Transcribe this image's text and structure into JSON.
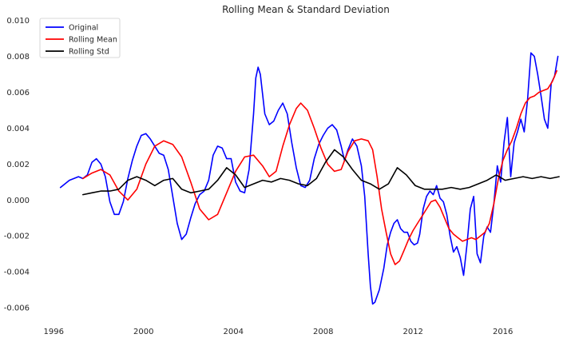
{
  "chart_data": {
    "type": "line",
    "title": "Rolling Mean & Standard Deviation",
    "xlabel": "",
    "ylabel": "",
    "xlim": [
      1995.6,
      2018.5
    ],
    "ylim": [
      -0.0068,
      0.0103
    ],
    "x_ticks": [
      1996,
      2000,
      2004,
      2008,
      2012,
      2016
    ],
    "y_ticks": [
      -0.006,
      -0.004,
      -0.002,
      0.0,
      0.002,
      0.004,
      0.006,
      0.008,
      0.01
    ],
    "x_tick_labels": [
      "1996",
      "2000",
      "2004",
      "2008",
      "2012",
      "2016"
    ],
    "y_tick_labels": [
      "-0.006",
      "-0.004",
      "-0.002",
      "0.000",
      "0.002",
      "0.004",
      "0.006",
      "0.008",
      "0.010"
    ],
    "grid": false,
    "legend_position": "top-left",
    "series": [
      {
        "name": "Original",
        "color": "#0000ff",
        "points": [
          [
            1996.3,
            0.0007
          ],
          [
            1996.5,
            0.0009
          ],
          [
            1996.7,
            0.0011
          ],
          [
            1996.9,
            0.0012
          ],
          [
            1997.1,
            0.0013
          ],
          [
            1997.3,
            0.0012
          ],
          [
            1997.5,
            0.0014
          ],
          [
            1997.7,
            0.0021
          ],
          [
            1997.9,
            0.0023
          ],
          [
            1998.1,
            0.002
          ],
          [
            1998.3,
            0.0013
          ],
          [
            1998.5,
            -0.0001
          ],
          [
            1998.7,
            -0.0008
          ],
          [
            1998.9,
            -0.0008
          ],
          [
            1999.1,
            -0.0001
          ],
          [
            1999.3,
            0.0012
          ],
          [
            1999.5,
            0.0022
          ],
          [
            1999.7,
            0.003
          ],
          [
            1999.9,
            0.0036
          ],
          [
            2000.1,
            0.0037
          ],
          [
            2000.3,
            0.0034
          ],
          [
            2000.5,
            0.003
          ],
          [
            2000.7,
            0.0026
          ],
          [
            2000.9,
            0.0025
          ],
          [
            2001.1,
            0.0017
          ],
          [
            2001.3,
            0.0002
          ],
          [
            2001.5,
            -0.0013
          ],
          [
            2001.7,
            -0.0022
          ],
          [
            2001.9,
            -0.0019
          ],
          [
            2002.1,
            -0.001
          ],
          [
            2002.3,
            -0.0002
          ],
          [
            2002.5,
            0.0003
          ],
          [
            2002.7,
            0.0005
          ],
          [
            2002.9,
            0.0011
          ],
          [
            2003.1,
            0.0025
          ],
          [
            2003.3,
            0.003
          ],
          [
            2003.5,
            0.0029
          ],
          [
            2003.7,
            0.0023
          ],
          [
            2003.9,
            0.0023
          ],
          [
            2004.1,
            0.001
          ],
          [
            2004.3,
            0.0005
          ],
          [
            2004.5,
            0.0004
          ],
          [
            2004.7,
            0.0017
          ],
          [
            2004.9,
            0.0048
          ],
          [
            2005.0,
            0.0068
          ],
          [
            2005.1,
            0.0074
          ],
          [
            2005.2,
            0.007
          ],
          [
            2005.4,
            0.0048
          ],
          [
            2005.6,
            0.0042
          ],
          [
            2005.8,
            0.0044
          ],
          [
            2006.0,
            0.005
          ],
          [
            2006.2,
            0.0054
          ],
          [
            2006.4,
            0.0048
          ],
          [
            2006.6,
            0.0032
          ],
          [
            2006.8,
            0.0018
          ],
          [
            2007.0,
            0.0008
          ],
          [
            2007.2,
            0.0007
          ],
          [
            2007.4,
            0.0011
          ],
          [
            2007.6,
            0.0023
          ],
          [
            2007.8,
            0.0031
          ],
          [
            2008.0,
            0.0036
          ],
          [
            2008.2,
            0.004
          ],
          [
            2008.4,
            0.0042
          ],
          [
            2008.6,
            0.0039
          ],
          [
            2008.8,
            0.003
          ],
          [
            2008.95,
            0.0022
          ],
          [
            2009.1,
            0.0028
          ],
          [
            2009.3,
            0.0034
          ],
          [
            2009.5,
            0.003
          ],
          [
            2009.7,
            0.0019
          ],
          [
            2009.85,
            0.0002
          ],
          [
            2010.0,
            -0.003
          ],
          [
            2010.1,
            -0.0048
          ],
          [
            2010.2,
            -0.0058
          ],
          [
            2010.3,
            -0.0057
          ],
          [
            2010.5,
            -0.005
          ],
          [
            2010.7,
            -0.0038
          ],
          [
            2010.85,
            -0.0025
          ],
          [
            2011.0,
            -0.0018
          ],
          [
            2011.15,
            -0.0013
          ],
          [
            2011.3,
            -0.0011
          ],
          [
            2011.45,
            -0.0016
          ],
          [
            2011.6,
            -0.0018
          ],
          [
            2011.75,
            -0.0018
          ],
          [
            2011.9,
            -0.0023
          ],
          [
            2012.05,
            -0.0025
          ],
          [
            2012.2,
            -0.0024
          ],
          [
            2012.3,
            -0.0019
          ],
          [
            2012.45,
            -0.0005
          ],
          [
            2012.6,
            0.0002
          ],
          [
            2012.75,
            0.0005
          ],
          [
            2012.9,
            0.0003
          ],
          [
            2013.05,
            0.0008
          ],
          [
            2013.2,
            0.0001
          ],
          [
            2013.35,
            -0.0001
          ],
          [
            2013.5,
            -0.0008
          ],
          [
            2013.65,
            -0.002
          ],
          [
            2013.8,
            -0.0029
          ],
          [
            2013.95,
            -0.0026
          ],
          [
            2014.1,
            -0.0032
          ],
          [
            2014.25,
            -0.0042
          ],
          [
            2014.4,
            -0.0025
          ],
          [
            2014.55,
            -0.0005
          ],
          [
            2014.7,
            0.0002
          ],
          [
            2014.85,
            -0.003
          ],
          [
            2015.0,
            -0.0035
          ],
          [
            2015.15,
            -0.002
          ],
          [
            2015.3,
            -0.0015
          ],
          [
            2015.45,
            -0.0018
          ],
          [
            2015.6,
            -0.0002
          ],
          [
            2015.75,
            0.0019
          ],
          [
            2015.9,
            0.001
          ],
          [
            2016.05,
            0.0032
          ],
          [
            2016.2,
            0.0046
          ],
          [
            2016.35,
            0.0013
          ],
          [
            2016.5,
            0.0032
          ],
          [
            2016.65,
            0.0038
          ],
          [
            2016.8,
            0.0045
          ],
          [
            2016.95,
            0.0038
          ],
          [
            2017.1,
            0.0056
          ],
          [
            2017.25,
            0.0082
          ],
          [
            2017.4,
            0.008
          ],
          [
            2017.55,
            0.007
          ],
          [
            2017.7,
            0.0058
          ],
          [
            2017.85,
            0.0045
          ],
          [
            2018.0,
            0.004
          ],
          [
            2018.15,
            0.0065
          ],
          [
            2018.3,
            0.0069
          ],
          [
            2018.45,
            0.008
          ],
          [
            2018.6,
            0.0075
          ],
          [
            2018.75,
            0.008
          ],
          [
            2018.9,
            0.0088
          ],
          [
            2019.0,
            0.0093
          ]
        ]
      },
      {
        "name": "Rolling Mean",
        "color": "#ff0000",
        "points": [
          [
            1997.3,
            0.0012
          ],
          [
            1997.7,
            0.0015
          ],
          [
            1998.1,
            0.0017
          ],
          [
            1998.5,
            0.0014
          ],
          [
            1998.9,
            0.0005
          ],
          [
            1999.3,
            0.0
          ],
          [
            1999.7,
            0.0006
          ],
          [
            2000.1,
            0.002
          ],
          [
            2000.5,
            0.003
          ],
          [
            2000.9,
            0.0033
          ],
          [
            2001.3,
            0.0031
          ],
          [
            2001.7,
            0.0024
          ],
          [
            2002.1,
            0.001
          ],
          [
            2002.5,
            -0.0005
          ],
          [
            2002.9,
            -0.0011
          ],
          [
            2003.3,
            -0.0008
          ],
          [
            2003.7,
            0.0004
          ],
          [
            2004.1,
            0.0016
          ],
          [
            2004.5,
            0.0024
          ],
          [
            2004.9,
            0.0025
          ],
          [
            2005.3,
            0.0019
          ],
          [
            2005.6,
            0.0013
          ],
          [
            2005.9,
            0.0016
          ],
          [
            2006.2,
            0.003
          ],
          [
            2006.5,
            0.0042
          ],
          [
            2006.8,
            0.0051
          ],
          [
            2007.0,
            0.0054
          ],
          [
            2007.3,
            0.005
          ],
          [
            2007.6,
            0.004
          ],
          [
            2007.9,
            0.0029
          ],
          [
            2008.2,
            0.002
          ],
          [
            2008.5,
            0.0016
          ],
          [
            2008.8,
            0.0017
          ],
          [
            2009.1,
            0.0027
          ],
          [
            2009.4,
            0.0033
          ],
          [
            2009.7,
            0.0034
          ],
          [
            2010.0,
            0.0033
          ],
          [
            2010.2,
            0.0028
          ],
          [
            2010.4,
            0.0013
          ],
          [
            2010.6,
            -0.0005
          ],
          [
            2010.8,
            -0.0018
          ],
          [
            2011.0,
            -0.003
          ],
          [
            2011.2,
            -0.0036
          ],
          [
            2011.4,
            -0.0034
          ],
          [
            2011.6,
            -0.0028
          ],
          [
            2011.8,
            -0.0022
          ],
          [
            2012.0,
            -0.0017
          ],
          [
            2012.2,
            -0.0013
          ],
          [
            2012.4,
            -0.0009
          ],
          [
            2012.6,
            -0.0005
          ],
          [
            2012.8,
            -0.0001
          ],
          [
            2013.0,
            0.0
          ],
          [
            2013.2,
            -0.0004
          ],
          [
            2013.4,
            -0.001
          ],
          [
            2013.6,
            -0.0016
          ],
          [
            2013.8,
            -0.0019
          ],
          [
            2014.0,
            -0.0021
          ],
          [
            2014.2,
            -0.0023
          ],
          [
            2014.4,
            -0.0022
          ],
          [
            2014.6,
            -0.0021
          ],
          [
            2014.8,
            -0.0022
          ],
          [
            2015.0,
            -0.002
          ],
          [
            2015.2,
            -0.0018
          ],
          [
            2015.4,
            -0.0013
          ],
          [
            2015.6,
            -0.0002
          ],
          [
            2015.8,
            0.0012
          ],
          [
            2016.0,
            0.0022
          ],
          [
            2016.2,
            0.0028
          ],
          [
            2016.4,
            0.0033
          ],
          [
            2016.6,
            0.004
          ],
          [
            2016.8,
            0.0048
          ],
          [
            2017.0,
            0.0054
          ],
          [
            2017.2,
            0.0057
          ],
          [
            2017.4,
            0.0058
          ],
          [
            2017.6,
            0.006
          ],
          [
            2017.8,
            0.0061
          ],
          [
            2018.0,
            0.0062
          ],
          [
            2018.2,
            0.0066
          ],
          [
            2018.4,
            0.0072
          ],
          [
            2018.6,
            0.0076
          ],
          [
            2018.8,
            0.0077
          ],
          [
            2019.0,
            0.0079
          ]
        ]
      },
      {
        "name": "Rolling Std",
        "color": "#000000",
        "points": [
          [
            1997.3,
            0.0003
          ],
          [
            1997.7,
            0.0004
          ],
          [
            1998.1,
            0.0005
          ],
          [
            1998.5,
            0.0005
          ],
          [
            1998.9,
            0.0006
          ],
          [
            1999.3,
            0.0011
          ],
          [
            1999.7,
            0.0013
          ],
          [
            2000.1,
            0.0011
          ],
          [
            2000.5,
            0.0008
          ],
          [
            2000.9,
            0.0011
          ],
          [
            2001.3,
            0.0012
          ],
          [
            2001.7,
            0.0006
          ],
          [
            2002.1,
            0.0004
          ],
          [
            2002.5,
            0.0005
          ],
          [
            2002.9,
            0.0006
          ],
          [
            2003.3,
            0.0011
          ],
          [
            2003.7,
            0.0018
          ],
          [
            2004.1,
            0.0014
          ],
          [
            2004.5,
            0.0007
          ],
          [
            2004.9,
            0.0009
          ],
          [
            2005.3,
            0.0011
          ],
          [
            2005.7,
            0.001
          ],
          [
            2006.1,
            0.0012
          ],
          [
            2006.5,
            0.0011
          ],
          [
            2006.9,
            0.0009
          ],
          [
            2007.3,
            0.0008
          ],
          [
            2007.7,
            0.0012
          ],
          [
            2008.1,
            0.0021
          ],
          [
            2008.5,
            0.0028
          ],
          [
            2008.9,
            0.0024
          ],
          [
            2009.3,
            0.0017
          ],
          [
            2009.7,
            0.0011
          ],
          [
            2010.1,
            0.0009
          ],
          [
            2010.5,
            0.0006
          ],
          [
            2010.9,
            0.0009
          ],
          [
            2011.3,
            0.0018
          ],
          [
            2011.7,
            0.0014
          ],
          [
            2012.1,
            0.0008
          ],
          [
            2012.5,
            0.0006
          ],
          [
            2012.9,
            0.0006
          ],
          [
            2013.3,
            0.0006
          ],
          [
            2013.7,
            0.0007
          ],
          [
            2014.1,
            0.0006
          ],
          [
            2014.5,
            0.0007
          ],
          [
            2014.9,
            0.0009
          ],
          [
            2015.3,
            0.0011
          ],
          [
            2015.7,
            0.0014
          ],
          [
            2016.1,
            0.0011
          ],
          [
            2016.5,
            0.0012
          ],
          [
            2016.9,
            0.0013
          ],
          [
            2017.3,
            0.0012
          ],
          [
            2017.7,
            0.0013
          ],
          [
            2018.1,
            0.0012
          ],
          [
            2018.5,
            0.0013
          ],
          [
            2019.0,
            0.0012
          ]
        ]
      }
    ]
  }
}
